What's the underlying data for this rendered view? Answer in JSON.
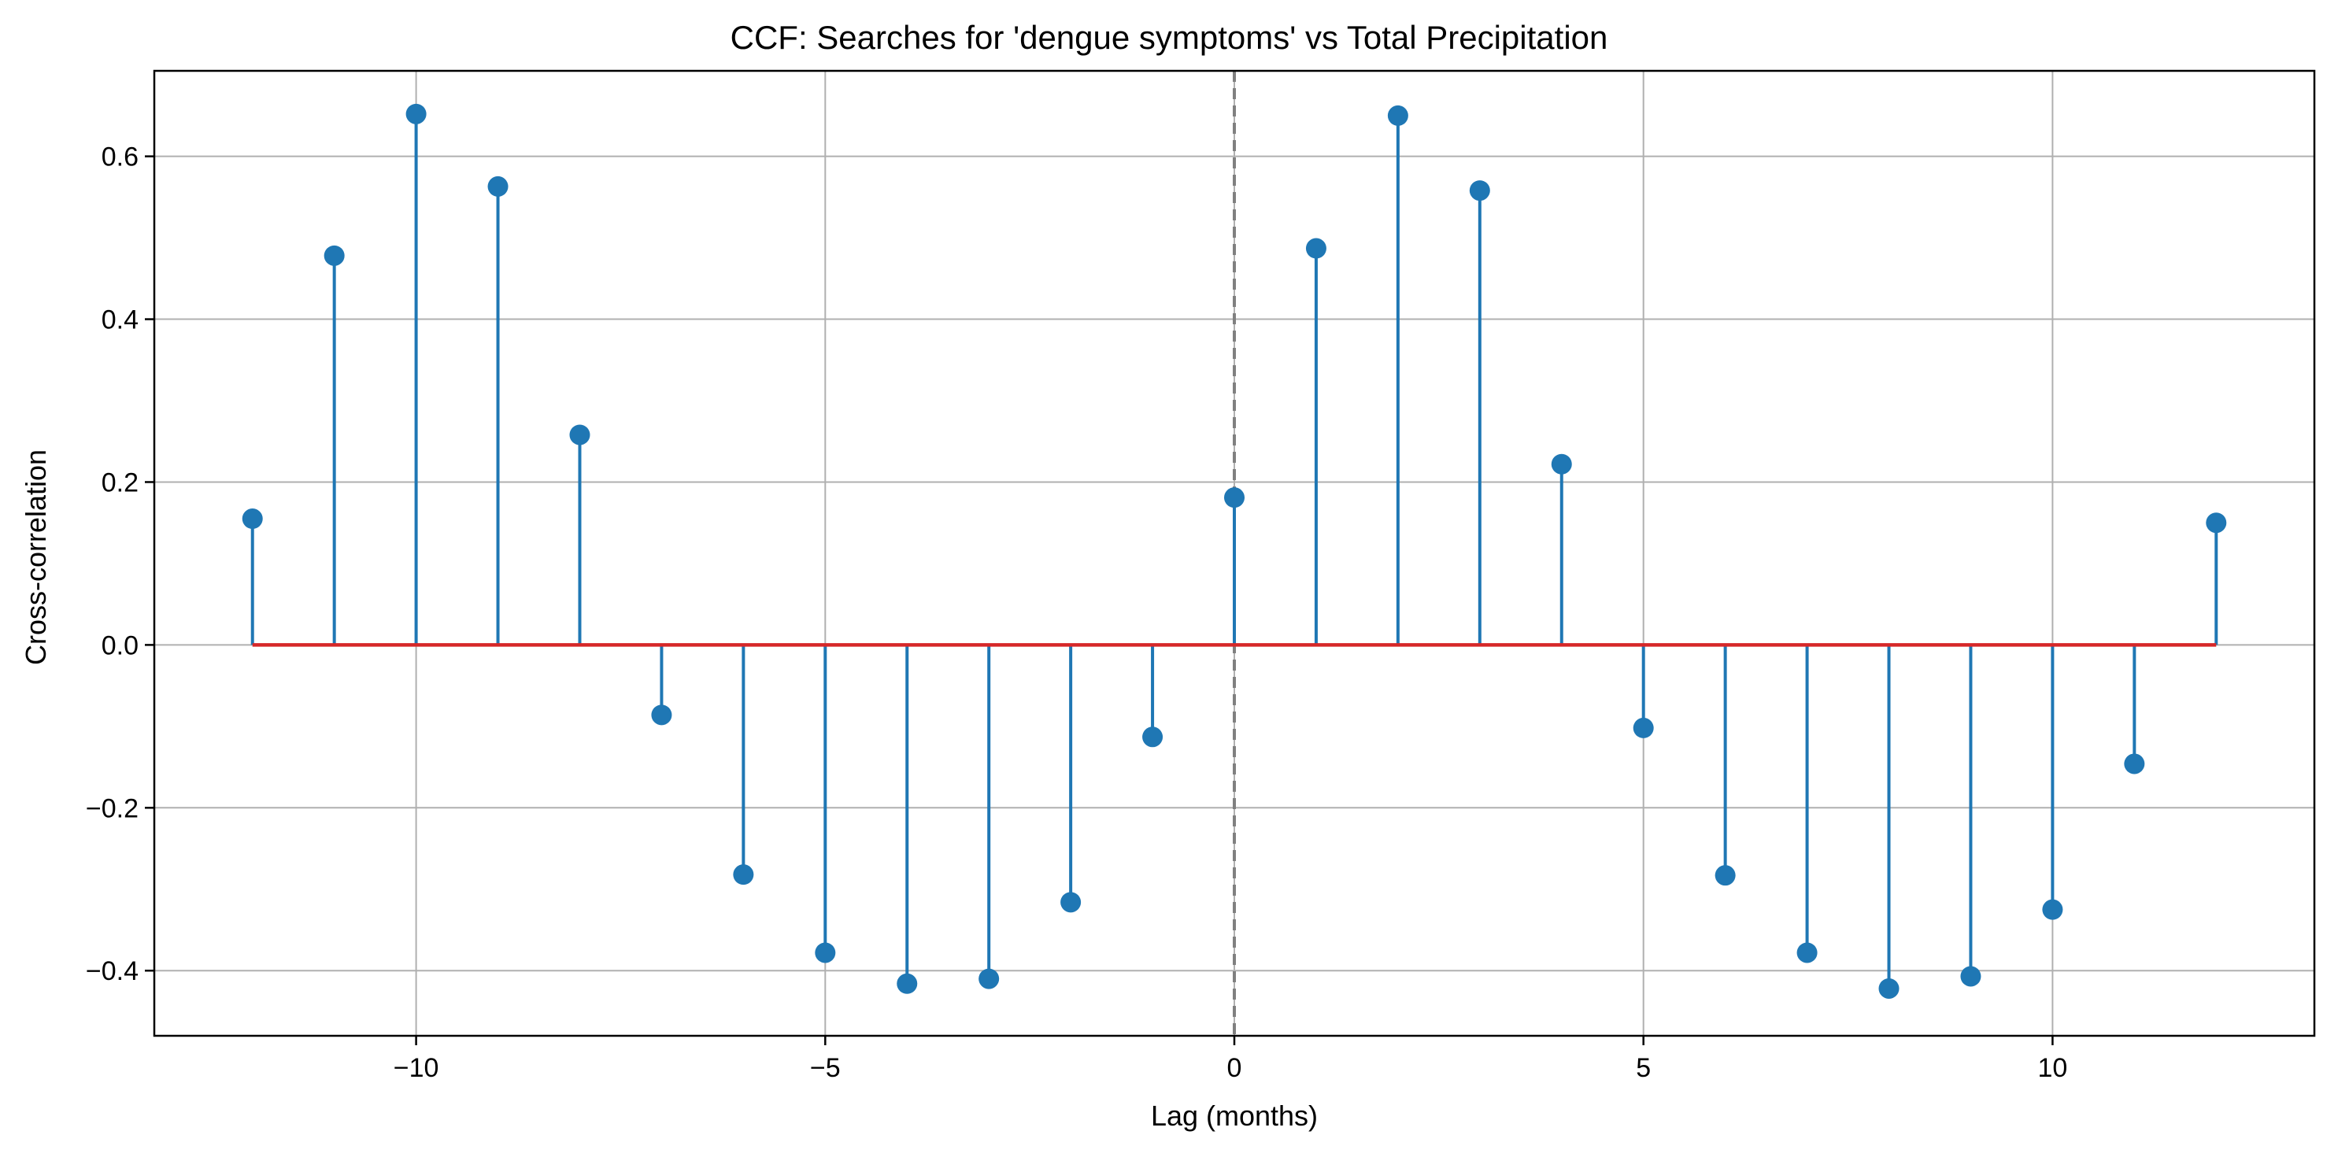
{
  "chart_data": {
    "type": "stem",
    "title": "CCF: Searches for 'dengue symptoms' vs Total Precipitation",
    "xlabel": "Lag (months)",
    "ylabel": "Cross-correlation",
    "xlim": [
      -13.2,
      13.2
    ],
    "ylim": [
      -0.48,
      0.705
    ],
    "x_ticks": [
      -10,
      -5,
      0,
      5,
      10
    ],
    "x_tick_labels": [
      "−10",
      "−5",
      "0",
      "5",
      "10"
    ],
    "y_ticks": [
      -0.4,
      -0.2,
      0.0,
      0.2,
      0.4,
      0.6
    ],
    "y_tick_labels": [
      "−0.4",
      "−0.2",
      "0.0",
      "0.2",
      "0.4",
      "0.6"
    ],
    "grid": true,
    "baseline": 0,
    "vertical_reference_line": {
      "x": 0,
      "style": "dashed"
    },
    "x": [
      -12,
      -11,
      -10,
      -9,
      -8,
      -7,
      -6,
      -5,
      -4,
      -3,
      -2,
      -1,
      0,
      1,
      2,
      3,
      4,
      5,
      6,
      7,
      8,
      9,
      10,
      11,
      12
    ],
    "values": [
      0.155,
      0.478,
      0.652,
      0.563,
      0.258,
      -0.086,
      -0.282,
      -0.378,
      -0.416,
      -0.41,
      -0.316,
      -0.113,
      0.181,
      0.487,
      0.65,
      0.558,
      0.222,
      -0.102,
      -0.283,
      -0.378,
      -0.422,
      -0.407,
      -0.325,
      -0.146,
      0.15
    ],
    "colors": {
      "stem": "#1f77b4",
      "marker": "#1f77b4",
      "baseline": "#d62728",
      "reference_line": "#808080",
      "grid": "#b0b0b0",
      "axes": "#000000"
    }
  }
}
